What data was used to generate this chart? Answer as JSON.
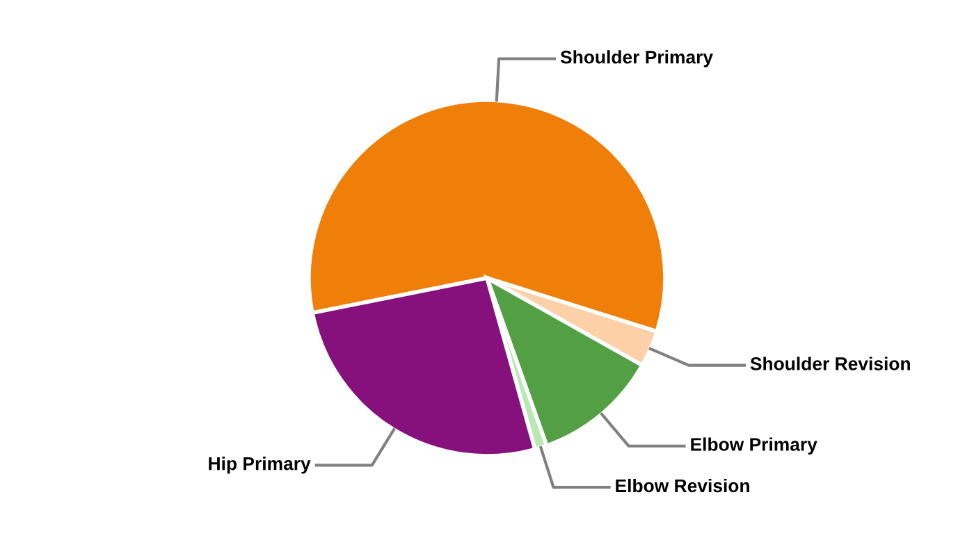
{
  "chart_data": {
    "type": "pie",
    "categories": [
      "Shoulder Primary",
      "Shoulder Revision",
      "Elbow Primary",
      "Elbow Revision",
      "Hip Primary"
    ],
    "values": [
      58.0,
      3.3,
      11.4,
      1.1,
      26.2
    ],
    "colors": [
      "#f07f09",
      "#fdd0a8",
      "#52a043",
      "#b8e8b4",
      "#86117c"
    ]
  }
}
